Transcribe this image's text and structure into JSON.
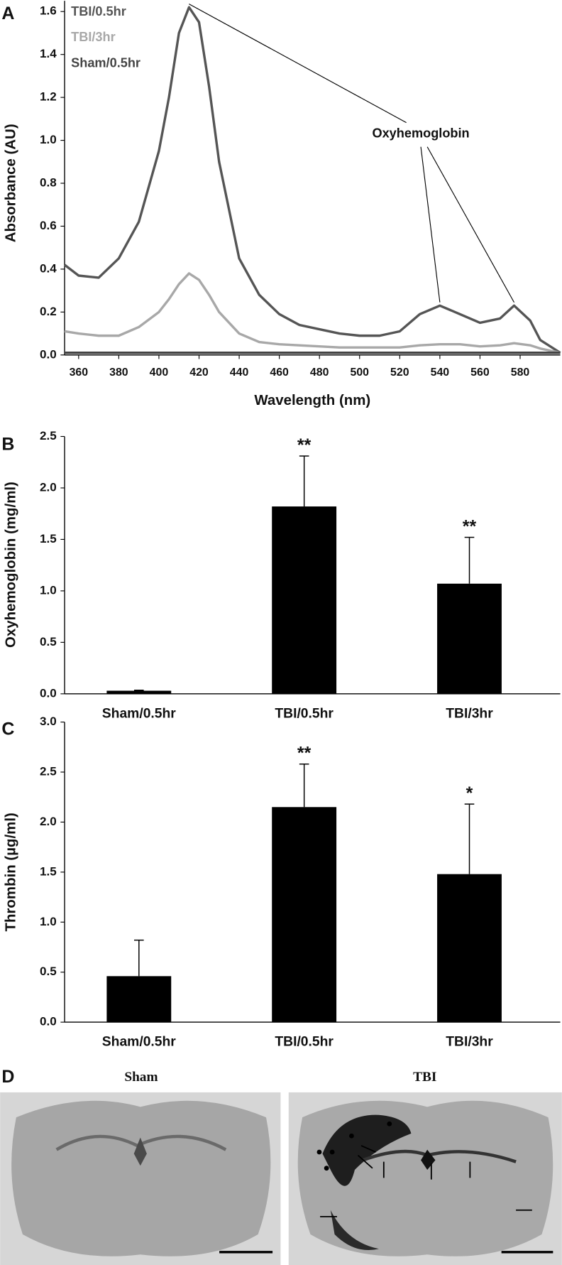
{
  "chart_data": [
    {
      "type": "line",
      "label": "A",
      "xlabel": "Wavelength (nm)",
      "ylabel": "Absorbance (AU)",
      "x": [
        353,
        360,
        370,
        380,
        390,
        400,
        405,
        410,
        415,
        420,
        425,
        430,
        440,
        450,
        460,
        470,
        480,
        490,
        500,
        510,
        520,
        530,
        540,
        550,
        560,
        570,
        577,
        585,
        590,
        600
      ],
      "series": [
        {
          "name": "TBI/0.5hr",
          "color": "#555555",
          "values": [
            0.42,
            0.37,
            0.36,
            0.45,
            0.62,
            0.95,
            1.2,
            1.5,
            1.62,
            1.55,
            1.25,
            0.9,
            0.45,
            0.28,
            0.19,
            0.14,
            0.12,
            0.1,
            0.09,
            0.09,
            0.11,
            0.19,
            0.23,
            0.19,
            0.15,
            0.17,
            0.23,
            0.16,
            0.07,
            0.01
          ]
        },
        {
          "name": "TBI/3hr",
          "color": "#a8a8a8",
          "values": [
            0.11,
            0.1,
            0.09,
            0.09,
            0.13,
            0.2,
            0.26,
            0.33,
            0.38,
            0.35,
            0.28,
            0.2,
            0.1,
            0.06,
            0.05,
            0.045,
            0.04,
            0.035,
            0.035,
            0.035,
            0.035,
            0.045,
            0.05,
            0.05,
            0.04,
            0.045,
            0.055,
            0.045,
            0.03,
            0.01
          ]
        },
        {
          "name": "Sham/0.5hr",
          "color": "#444444",
          "values": [
            0.01,
            0.01,
            0.01,
            0.01,
            0.01,
            0.01,
            0.01,
            0.01,
            0.01,
            0.01,
            0.01,
            0.01,
            0.01,
            0.01,
            0.01,
            0.01,
            0.01,
            0.01,
            0.01,
            0.01,
            0.01,
            0.01,
            0.01,
            0.01,
            0.01,
            0.01,
            0.01,
            0.01,
            0.01,
            0.01
          ]
        }
      ],
      "annotation": {
        "text": "Oxyhemoglobin",
        "points": [
          415,
          540,
          577
        ]
      },
      "xlim": [
        353,
        600
      ],
      "xticks": [
        360,
        380,
        400,
        420,
        440,
        460,
        480,
        500,
        520,
        540,
        560,
        580
      ],
      "ylim": [
        0,
        1.65
      ],
      "yticks": [
        {
          "value": 0,
          "label": "0.0"
        },
        0.2,
        0.4,
        0.6,
        0.8,
        {
          "value": 1,
          "label": "1.0"
        },
        1.2,
        1.4,
        1.6
      ],
      "legend": "top-left",
      "grid": false
    },
    {
      "type": "bar",
      "label": "B",
      "ylabel": "Oxyhemoglobin (mg/ml)",
      "categories": [
        "Sham/0.5hr",
        "TBI/0.5hr",
        "TBI/3hr"
      ],
      "values": [
        0.03,
        1.82,
        1.07
      ],
      "errors": [
        0.005,
        0.49,
        0.45
      ],
      "significance": [
        null,
        "**",
        "**"
      ],
      "color": "#000000",
      "ylim": [
        0,
        2.5
      ],
      "yticks": [
        {
          "value": 0,
          "label": "0.0"
        },
        0.5,
        {
          "value": 1,
          "label": "1.0"
        },
        1.5,
        {
          "value": 2,
          "label": "2.0"
        },
        2.5
      ],
      "grid": false
    },
    {
      "type": "bar",
      "label": "C",
      "ylabel": "Thrombin (µg/ml)",
      "categories": [
        "Sham/0.5hr",
        "TBI/0.5hr",
        "TBI/3hr"
      ],
      "values": [
        0.46,
        2.15,
        1.48
      ],
      "errors": [
        0.36,
        0.43,
        0.7
      ],
      "significance": [
        null,
        "**",
        "*"
      ],
      "color": "#000000",
      "ylim": [
        0,
        3
      ],
      "yticks": [
        {
          "value": 0,
          "label": "0.0"
        },
        0.5,
        {
          "value": 1,
          "label": "1.0"
        },
        1.5,
        {
          "value": 2,
          "label": "2.0"
        },
        2.5,
        {
          "value": 3,
          "label": "3.0"
        }
      ],
      "grid": false
    }
  ],
  "panel_d": {
    "label": "D",
    "titles": [
      "Sham",
      "TBI"
    ]
  }
}
